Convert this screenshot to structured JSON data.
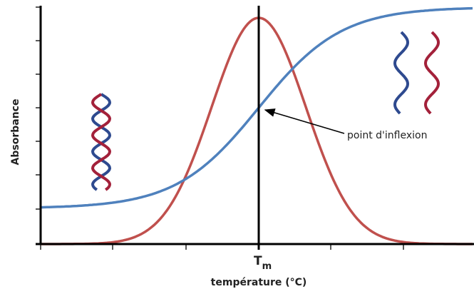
{
  "y_axis": {
    "label": "Absorbance"
  },
  "x_axis": {
    "tick_main": "T",
    "tick_sub": "m",
    "label": "température (°C)"
  },
  "annotation": "point d'inflexion"
}
